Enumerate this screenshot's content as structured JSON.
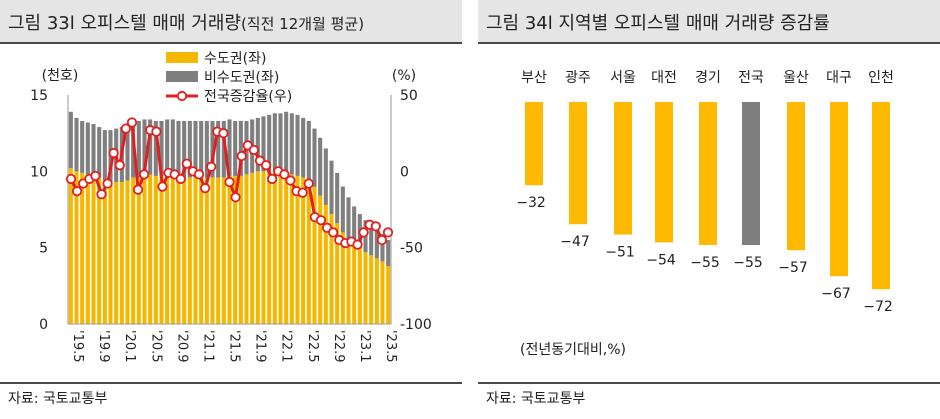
{
  "left": {
    "title": "그림 33l 오피스텔 매매 거래량",
    "title_sub": "(직전 12개월 평균)",
    "source": "자료: 국토교통부",
    "chart_data": {
      "type": "bar",
      "left_unit": "(천호)",
      "right_unit": "(%)",
      "left_ylim": [
        0,
        15
      ],
      "left_ticks": [
        "0",
        "5",
        "10",
        "15"
      ],
      "right_ylim": [
        -100,
        50
      ],
      "right_ticks": [
        "-100",
        "-50",
        "0",
        "50"
      ],
      "x_tick_labels": [
        "'19.5",
        "'19.9",
        "'20.1",
        "'20.5",
        "'20.9",
        "'21.1",
        "'21.5",
        "'21.9",
        "'22.1",
        "'22.5",
        "'22.9",
        "'23.1",
        "'23.5"
      ],
      "legend": [
        "수도권(좌)",
        "비수도권(좌)",
        "전국증감율(우)"
      ],
      "series": [
        {
          "name": "수도권(좌)",
          "type": "bar",
          "color": "#f5b800",
          "values": [
            10.2,
            10.0,
            9.9,
            9.8,
            9.7,
            9.6,
            9.4,
            9.3,
            9.3,
            9.3,
            9.4,
            9.6,
            9.6,
            9.8,
            9.8,
            9.7,
            9.7,
            9.7,
            9.7,
            9.6,
            9.6,
            9.6,
            9.6,
            9.6,
            9.6,
            9.6,
            9.6,
            9.6,
            9.7,
            9.7,
            9.7,
            9.8,
            9.9,
            10.0,
            10.0,
            10.0,
            10.0,
            9.9,
            9.9,
            9.8,
            9.7,
            9.6,
            9.4,
            9.0,
            8.4,
            7.8,
            7.2,
            6.6,
            6.0,
            5.6,
            5.3,
            5.0,
            4.7,
            4.5,
            4.3,
            4.1,
            3.8
          ]
        },
        {
          "name": "비수도권(좌)",
          "type": "bar",
          "color": "#7f7f7f",
          "values": [
            3.7,
            3.5,
            3.4,
            3.4,
            3.4,
            3.3,
            3.3,
            3.4,
            3.5,
            3.6,
            3.7,
            3.7,
            3.7,
            3.6,
            3.6,
            3.6,
            3.6,
            3.7,
            3.7,
            3.7,
            3.7,
            3.7,
            3.7,
            3.7,
            3.7,
            3.7,
            3.7,
            3.7,
            3.7,
            3.6,
            3.6,
            3.5,
            3.5,
            3.5,
            3.6,
            3.7,
            3.8,
            3.9,
            4.0,
            4.0,
            4.0,
            3.9,
            3.9,
            3.8,
            3.8,
            3.7,
            3.5,
            3.3,
            3.0,
            2.7,
            2.4,
            2.2,
            2.1,
            2.0,
            1.9,
            1.8,
            1.7
          ]
        },
        {
          "name": "전국증감율(우)",
          "type": "line",
          "color": "#e02020",
          "values": [
            -5,
            -13,
            -8,
            -5,
            -3,
            -15,
            -8,
            12,
            4,
            28,
            32,
            -12,
            -2,
            27,
            26,
            -10,
            -1,
            -2,
            -5,
            5,
            0,
            -2,
            -11,
            3,
            26,
            25,
            -7,
            -17,
            10,
            17,
            14,
            7,
            4,
            -5,
            0,
            -2,
            -6,
            -13,
            -14,
            -8,
            -30,
            -32,
            -37,
            -40,
            -45,
            -47,
            -46,
            -48,
            -40,
            -35,
            -36,
            -45,
            -40
          ]
        }
      ]
    }
  },
  "right": {
    "title": "그림 34l 지역별 오피스텔 매매 거래량 증감률",
    "note": "(전년동기대비,%)",
    "source": "자료: 국토교통부",
    "chart_data": {
      "type": "bar",
      "categories": [
        "부산",
        "광주",
        "서울",
        "대전",
        "경기",
        "전국",
        "울산",
        "대구",
        "인천"
      ],
      "values": [
        -32,
        -47,
        -51,
        -54,
        -55,
        -55,
        -57,
        -67,
        -72
      ],
      "value_labels": [
        "−32",
        "−47",
        "−51",
        "−54",
        "−55",
        "−55",
        "−57",
        "−67",
        "−72"
      ],
      "colors": [
        "#ffb900",
        "#ffb900",
        "#ffb900",
        "#ffb900",
        "#ffb900",
        "#7f7f7f",
        "#ffb900",
        "#ffb900",
        "#ffb900"
      ]
    }
  }
}
